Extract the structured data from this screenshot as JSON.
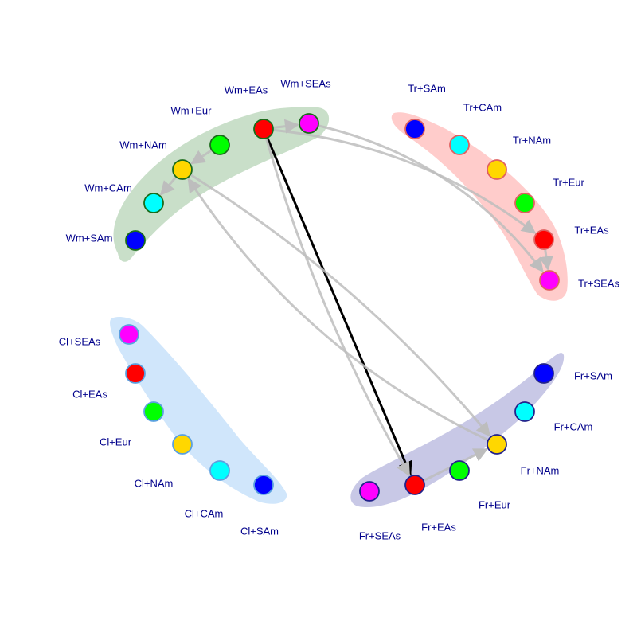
{
  "colors": {
    "label": "#00008b",
    "edge_gray": "#bdbdbd",
    "edge_highlight": "#000000"
  },
  "groups": [
    {
      "id": "Wm",
      "fill": "#c9dfc9",
      "node_border": "#1a6b1a"
    },
    {
      "id": "Tr",
      "fill": "#ffcccb",
      "node_border": "#e06060"
    },
    {
      "id": "Fr",
      "fill": "#c8c8e6",
      "node_border": "#22228b"
    },
    {
      "id": "Cl",
      "fill": "#d0e6fb",
      "node_border": "#5aa0e0"
    }
  ],
  "nodes": [
    {
      "id": "Wm+SAm",
      "label": "Wm+SAm",
      "group": "Wm",
      "color": "#0000ff"
    },
    {
      "id": "Wm+CAm",
      "label": "Wm+CAm",
      "group": "Wm",
      "color": "#00ffff"
    },
    {
      "id": "Wm+NAm",
      "label": "Wm+NAm",
      "group": "Wm",
      "color": "#ffd700"
    },
    {
      "id": "Wm+Eur",
      "label": "Wm+Eur",
      "group": "Wm",
      "color": "#00ff00"
    },
    {
      "id": "Wm+EAs",
      "label": "Wm+EAs",
      "group": "Wm",
      "color": "#ff0000"
    },
    {
      "id": "Wm+SEAs",
      "label": "Wm+SEAs",
      "group": "Wm",
      "color": "#ff00ff"
    },
    {
      "id": "Tr+SAm",
      "label": "Tr+SAm",
      "group": "Tr",
      "color": "#0000ff"
    },
    {
      "id": "Tr+CAm",
      "label": "Tr+CAm",
      "group": "Tr",
      "color": "#00ffff"
    },
    {
      "id": "Tr+NAm",
      "label": "Tr+NAm",
      "group": "Tr",
      "color": "#ffd700"
    },
    {
      "id": "Tr+Eur",
      "label": "Tr+Eur",
      "group": "Tr",
      "color": "#00ff00"
    },
    {
      "id": "Tr+EAs",
      "label": "Tr+EAs",
      "group": "Tr",
      "color": "#ff0000"
    },
    {
      "id": "Tr+SEAs",
      "label": "Tr+SEAs",
      "group": "Tr",
      "color": "#ff00ff"
    },
    {
      "id": "Fr+SAm",
      "label": "Fr+SAm",
      "group": "Fr",
      "color": "#0000ff"
    },
    {
      "id": "Fr+CAm",
      "label": "Fr+CAm",
      "group": "Fr",
      "color": "#00ffff"
    },
    {
      "id": "Fr+NAm",
      "label": "Fr+NAm",
      "group": "Fr",
      "color": "#ffd700"
    },
    {
      "id": "Fr+Eur",
      "label": "Fr+Eur",
      "group": "Fr",
      "color": "#00ff00"
    },
    {
      "id": "Fr+EAs",
      "label": "Fr+EAs",
      "group": "Fr",
      "color": "#ff0000"
    },
    {
      "id": "Fr+SEAs",
      "label": "Fr+SEAs",
      "group": "Fr",
      "color": "#ff00ff"
    },
    {
      "id": "Cl+SEAs",
      "label": "Cl+SEAs",
      "group": "Cl",
      "color": "#ff00ff"
    },
    {
      "id": "Cl+EAs",
      "label": "Cl+EAs",
      "group": "Cl",
      "color": "#ff0000"
    },
    {
      "id": "Cl+Eur",
      "label": "Cl+Eur",
      "group": "Cl",
      "color": "#00ff00"
    },
    {
      "id": "Cl+NAm",
      "label": "Cl+NAm",
      "group": "Cl",
      "color": "#ffd700"
    },
    {
      "id": "Cl+CAm",
      "label": "Cl+CAm",
      "group": "Cl",
      "color": "#00ffff"
    },
    {
      "id": "Cl+SAm",
      "label": "Cl+SAm",
      "group": "Cl",
      "color": "#0000ff"
    }
  ],
  "edges": [
    {
      "from": "Wm+EAs",
      "to": "Wm+SEAs",
      "highlight": false
    },
    {
      "from": "Wm+Eur",
      "to": "Wm+NAm",
      "highlight": false
    },
    {
      "from": "Wm+NAm",
      "to": "Wm+CAm",
      "highlight": false
    },
    {
      "from": "Wm+EAs",
      "to": "Tr+EAs",
      "highlight": false
    },
    {
      "from": "Wm+SEAs",
      "to": "Tr+SEAs",
      "highlight": false
    },
    {
      "from": "Tr+EAs",
      "to": "Tr+SEAs",
      "highlight": false
    },
    {
      "from": "Wm+EAs",
      "to": "Fr+EAs",
      "highlight": true
    },
    {
      "from": "Wm+EAs",
      "to": "Fr+EAs",
      "highlight": false
    },
    {
      "from": "Wm+NAm",
      "to": "Fr+NAm",
      "highlight": false
    },
    {
      "from": "Fr+NAm",
      "to": "Wm+NAm",
      "highlight": false
    },
    {
      "from": "Fr+EAs",
      "to": "Fr+NAm",
      "highlight": false
    }
  ]
}
